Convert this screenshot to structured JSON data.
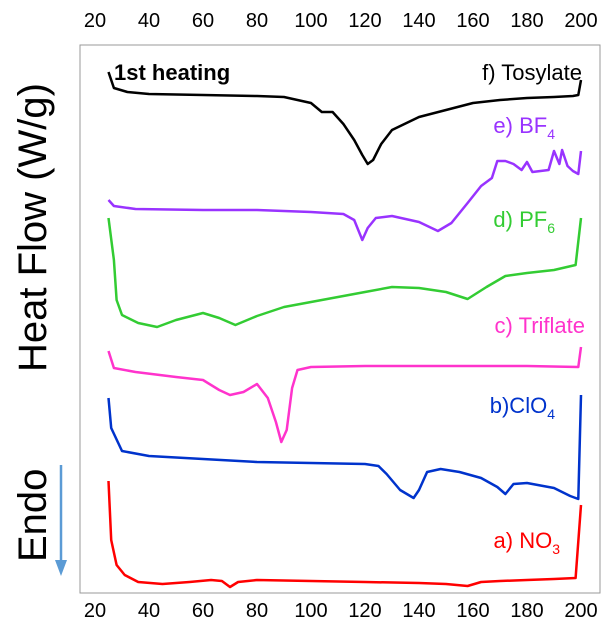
{
  "chart_data": {
    "type": "line",
    "title": "",
    "ylabel": "Heat Flow (W/g)",
    "xlabel": "",
    "xlim": [
      25,
      202
    ],
    "x_ticks": [
      20,
      40,
      60,
      80,
      100,
      120,
      140,
      160,
      180,
      200
    ],
    "grid": false,
    "annotation": "1st heating",
    "endo_label": "Endo",
    "endo_arrow_color": "#5b9bd5",
    "series": [
      {
        "label_main": "f) Tosylate",
        "label_sub": "",
        "color": "#000000",
        "points": [
          [
            25,
            72
          ],
          [
            27,
            88
          ],
          [
            32,
            92
          ],
          [
            40,
            94
          ],
          [
            60,
            95
          ],
          [
            80,
            96
          ],
          [
            90,
            97
          ],
          [
            100,
            103
          ],
          [
            104,
            112
          ],
          [
            108,
            112
          ],
          [
            112,
            124
          ],
          [
            116,
            140
          ],
          [
            119,
            155
          ],
          [
            121,
            164
          ],
          [
            123,
            160
          ],
          [
            126,
            144
          ],
          [
            130,
            130
          ],
          [
            140,
            117
          ],
          [
            150,
            110
          ],
          [
            160,
            103
          ],
          [
            170,
            100
          ],
          [
            180,
            98
          ],
          [
            190,
            97
          ],
          [
            197,
            96
          ],
          [
            199,
            95
          ],
          [
            200,
            80
          ]
        ]
      },
      {
        "label_main": "e) BF",
        "label_sub": "4",
        "color": "#9933ff",
        "points": [
          [
            25,
            200
          ],
          [
            27,
            206
          ],
          [
            35,
            209
          ],
          [
            60,
            210
          ],
          [
            80,
            210
          ],
          [
            100,
            212
          ],
          [
            112,
            214
          ],
          [
            116,
            220
          ],
          [
            119,
            240
          ],
          [
            121,
            228
          ],
          [
            124,
            218
          ],
          [
            130,
            216
          ],
          [
            140,
            222
          ],
          [
            147,
            231
          ],
          [
            152,
            223
          ],
          [
            158,
            203
          ],
          [
            163,
            186
          ],
          [
            167,
            178
          ],
          [
            169,
            161
          ],
          [
            172,
            161
          ],
          [
            175,
            164
          ],
          [
            178,
            170
          ],
          [
            180,
            162
          ],
          [
            182,
            172
          ],
          [
            185,
            171
          ],
          [
            188,
            170
          ],
          [
            190,
            151
          ],
          [
            192,
            164
          ],
          [
            193,
            150
          ],
          [
            195,
            166
          ],
          [
            197,
            171
          ],
          [
            199,
            174
          ],
          [
            200,
            151
          ]
        ]
      },
      {
        "label_main": "d) PF",
        "label_sub": "6",
        "color": "#33cc33",
        "points": [
          [
            25,
            218
          ],
          [
            27,
            260
          ],
          [
            28,
            300
          ],
          [
            30,
            315
          ],
          [
            36,
            323
          ],
          [
            43,
            327
          ],
          [
            50,
            320
          ],
          [
            60,
            313
          ],
          [
            66,
            318
          ],
          [
            72,
            325
          ],
          [
            80,
            316
          ],
          [
            90,
            307
          ],
          [
            100,
            302
          ],
          [
            110,
            297
          ],
          [
            120,
            292
          ],
          [
            130,
            287
          ],
          [
            140,
            288
          ],
          [
            150,
            292
          ],
          [
            158,
            299
          ],
          [
            165,
            287
          ],
          [
            172,
            276
          ],
          [
            180,
            273
          ],
          [
            190,
            270
          ],
          [
            198,
            265
          ],
          [
            200,
            218
          ]
        ]
      },
      {
        "label_main": "c) Triflate",
        "label_sub": "",
        "color": "#ff33cc",
        "points": [
          [
            25,
            351
          ],
          [
            27,
            368
          ],
          [
            35,
            372
          ],
          [
            50,
            377
          ],
          [
            60,
            380
          ],
          [
            66,
            390
          ],
          [
            70,
            395
          ],
          [
            75,
            392
          ],
          [
            80,
            384
          ],
          [
            84,
            398
          ],
          [
            87,
            422
          ],
          [
            89,
            442
          ],
          [
            91,
            430
          ],
          [
            93,
            388
          ],
          [
            95,
            370
          ],
          [
            100,
            367
          ],
          [
            120,
            366
          ],
          [
            140,
            366
          ],
          [
            160,
            366
          ],
          [
            180,
            366
          ],
          [
            199,
            367
          ],
          [
            200,
            347
          ]
        ]
      },
      {
        "label_main": "b)ClO",
        "label_sub": "4",
        "color": "#0033cc",
        "points": [
          [
            25,
            398
          ],
          [
            26,
            428
          ],
          [
            30,
            451
          ],
          [
            40,
            456
          ],
          [
            60,
            459
          ],
          [
            80,
            462
          ],
          [
            100,
            463
          ],
          [
            120,
            464
          ],
          [
            125,
            466
          ],
          [
            128,
            474
          ],
          [
            133,
            490
          ],
          [
            138,
            498
          ],
          [
            140,
            490
          ],
          [
            143,
            472
          ],
          [
            148,
            469
          ],
          [
            155,
            472
          ],
          [
            163,
            478
          ],
          [
            169,
            487
          ],
          [
            172,
            494
          ],
          [
            175,
            484
          ],
          [
            180,
            483
          ],
          [
            190,
            488
          ],
          [
            196,
            496
          ],
          [
            199,
            499
          ],
          [
            200,
            395
          ]
        ]
      },
      {
        "label_main": "a) NO",
        "label_sub": "3",
        "color": "#ff0000",
        "points": [
          [
            25,
            481
          ],
          [
            26,
            540
          ],
          [
            28,
            565
          ],
          [
            31,
            575
          ],
          [
            36,
            582
          ],
          [
            45,
            584
          ],
          [
            55,
            582
          ],
          [
            63,
            580
          ],
          [
            67,
            581
          ],
          [
            70,
            587
          ],
          [
            73,
            582
          ],
          [
            80,
            580
          ],
          [
            100,
            581
          ],
          [
            120,
            582
          ],
          [
            140,
            583
          ],
          [
            150,
            584
          ],
          [
            158,
            586
          ],
          [
            163,
            582
          ],
          [
            170,
            581
          ],
          [
            180,
            580
          ],
          [
            190,
            579
          ],
          [
            198,
            578
          ],
          [
            200,
            505
          ]
        ]
      }
    ]
  }
}
